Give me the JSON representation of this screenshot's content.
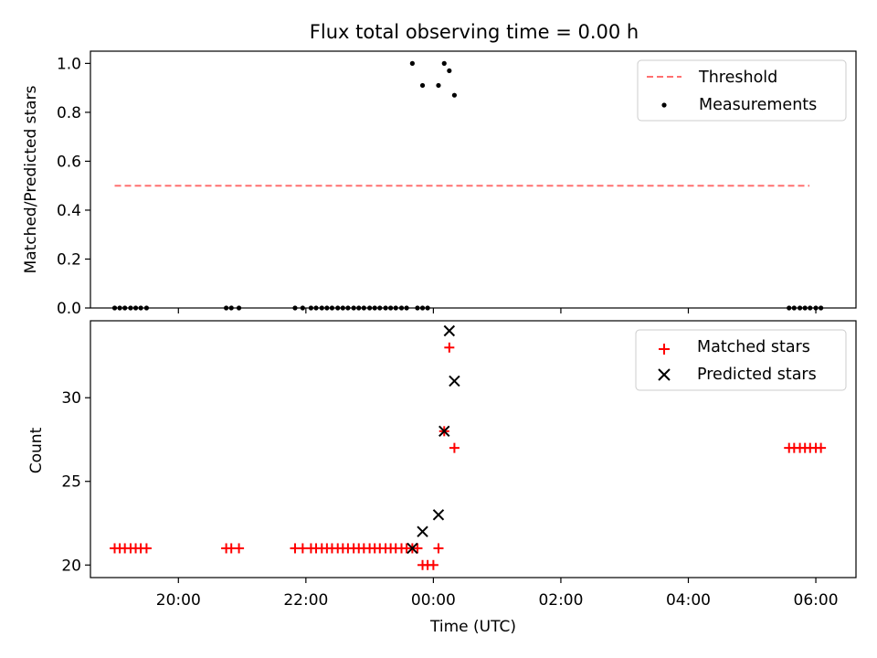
{
  "title": "Flux total observing time = 0.00 h",
  "colors": {
    "threshold": "#ff7070",
    "measurement": "#000000",
    "matched": "#ff0000",
    "predicted": "#000000"
  },
  "chart_data": [
    {
      "type": "scatter",
      "panel": "top",
      "ylabel": "Matched/Predicted stars",
      "xlabel": "",
      "ylim": [
        0.0,
        1.05
      ],
      "yticks": [
        0.0,
        0.2,
        0.4,
        0.6,
        0.8,
        1.0
      ],
      "ytick_labels": [
        "0.0",
        "0.2",
        "0.4",
        "0.6",
        "0.8",
        "1.0"
      ],
      "xlim": [
        18.62,
        30.63
      ],
      "grid": false,
      "legend_position": "top-right",
      "series": [
        {
          "name": "Threshold",
          "style": "dashed-line",
          "x": [
            19.0,
            29.9
          ],
          "y": [
            0.5,
            0.5
          ]
        },
        {
          "name": "Measurements",
          "style": "dot",
          "points": [
            [
              19.0,
              0.0
            ],
            [
              19.08,
              0.0
            ],
            [
              19.16,
              0.0
            ],
            [
              19.25,
              0.0
            ],
            [
              19.33,
              0.0
            ],
            [
              19.41,
              0.0
            ],
            [
              19.5,
              0.0
            ],
            [
              20.75,
              0.0
            ],
            [
              20.83,
              0.0
            ],
            [
              20.95,
              0.0
            ],
            [
              21.83,
              0.0
            ],
            [
              21.95,
              0.0
            ],
            [
              22.08,
              0.0
            ],
            [
              22.16,
              0.0
            ],
            [
              22.25,
              0.0
            ],
            [
              22.33,
              0.0
            ],
            [
              22.41,
              0.0
            ],
            [
              22.5,
              0.0
            ],
            [
              22.58,
              0.0
            ],
            [
              22.66,
              0.0
            ],
            [
              22.75,
              0.0
            ],
            [
              22.83,
              0.0
            ],
            [
              22.91,
              0.0
            ],
            [
              23.0,
              0.0
            ],
            [
              23.08,
              0.0
            ],
            [
              23.16,
              0.0
            ],
            [
              23.25,
              0.0
            ],
            [
              23.33,
              0.0
            ],
            [
              23.41,
              0.0
            ],
            [
              23.5,
              0.0
            ],
            [
              23.58,
              0.0
            ],
            [
              23.75,
              0.0
            ],
            [
              23.83,
              0.0
            ],
            [
              23.91,
              0.0
            ],
            [
              23.67,
              1.0
            ],
            [
              23.83,
              0.91
            ],
            [
              24.08,
              0.91
            ],
            [
              24.17,
              1.0
            ],
            [
              24.25,
              0.97
            ],
            [
              24.33,
              0.87
            ],
            [
              29.58,
              0.0
            ],
            [
              29.66,
              0.0
            ],
            [
              29.75,
              0.0
            ],
            [
              29.83,
              0.0
            ],
            [
              29.91,
              0.0
            ],
            [
              30.0,
              0.0
            ],
            [
              30.08,
              0.0
            ]
          ]
        }
      ]
    },
    {
      "type": "scatter",
      "panel": "bottom",
      "ylabel": "Count",
      "xlabel": "Time (UTC)",
      "ylim": [
        19.25,
        34.6
      ],
      "yticks": [
        20,
        25,
        30
      ],
      "ytick_labels": [
        "20",
        "25",
        "30"
      ],
      "xlim": [
        18.62,
        30.63
      ],
      "xticks": [
        20,
        22,
        24,
        26,
        28,
        30
      ],
      "xtick_labels": [
        "20:00",
        "22:00",
        "00:00",
        "02:00",
        "04:00",
        "06:00"
      ],
      "grid": false,
      "legend_position": "top-right",
      "series": [
        {
          "name": "Matched stars",
          "style": "plus",
          "points": [
            [
              19.0,
              21
            ],
            [
              19.08,
              21
            ],
            [
              19.16,
              21
            ],
            [
              19.25,
              21
            ],
            [
              19.33,
              21
            ],
            [
              19.41,
              21
            ],
            [
              19.5,
              21
            ],
            [
              20.75,
              21
            ],
            [
              20.83,
              21
            ],
            [
              20.95,
              21
            ],
            [
              21.83,
              21
            ],
            [
              21.95,
              21
            ],
            [
              22.08,
              21
            ],
            [
              22.16,
              21
            ],
            [
              22.25,
              21
            ],
            [
              22.33,
              21
            ],
            [
              22.41,
              21
            ],
            [
              22.5,
              21
            ],
            [
              22.58,
              21
            ],
            [
              22.66,
              21
            ],
            [
              22.75,
              21
            ],
            [
              22.83,
              21
            ],
            [
              22.91,
              21
            ],
            [
              23.0,
              21
            ],
            [
              23.08,
              21
            ],
            [
              23.16,
              21
            ],
            [
              23.25,
              21
            ],
            [
              23.33,
              21
            ],
            [
              23.41,
              21
            ],
            [
              23.5,
              21
            ],
            [
              23.58,
              21
            ],
            [
              23.67,
              21
            ],
            [
              23.75,
              21
            ],
            [
              23.83,
              20
            ],
            [
              23.91,
              20
            ],
            [
              24.0,
              20
            ],
            [
              24.08,
              21
            ],
            [
              24.17,
              28
            ],
            [
              24.25,
              33
            ],
            [
              24.33,
              27
            ],
            [
              29.58,
              27
            ],
            [
              29.66,
              27
            ],
            [
              29.75,
              27
            ],
            [
              29.83,
              27
            ],
            [
              29.91,
              27
            ],
            [
              30.0,
              27
            ],
            [
              30.08,
              27
            ]
          ]
        },
        {
          "name": "Predicted stars",
          "style": "x",
          "points": [
            [
              23.67,
              21
            ],
            [
              23.83,
              22
            ],
            [
              24.08,
              23
            ],
            [
              24.17,
              28
            ],
            [
              24.25,
              34
            ],
            [
              24.33,
              31
            ]
          ]
        }
      ]
    }
  ]
}
